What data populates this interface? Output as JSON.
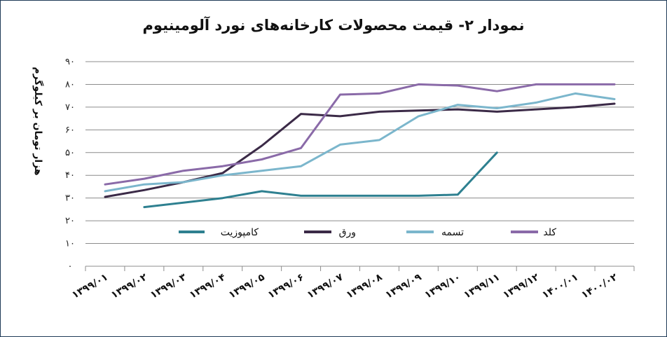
{
  "chart_data": {
    "type": "line",
    "title": "نمودار ۲- قیمت محصولات کارخانه‌های نورد آلومینیوم",
    "xlabel": "",
    "ylabel": "هزار تومان بر کیلوگرم",
    "categories": [
      "۱۳۹۹/۰۱",
      "۱۳۹۹/۰۲",
      "۱۳۹۹/۰۳",
      "۱۳۹۹/۰۴",
      "۱۳۹۹/۰۵",
      "۱۳۹۹/۰۶",
      "۱۳۹۹/۰۷",
      "۱۳۹۹/۰۸",
      "۱۳۹۹/۰۹",
      "۱۳۹۹/۱۰",
      "۱۳۹۹/۱۱",
      "۱۳۹۹/۱۲",
      "۱۴۰۰/۰۱",
      "۱۴۰۰/۰۲"
    ],
    "ylim": [
      0,
      90
    ],
    "yticks": [
      0,
      10,
      20,
      30,
      40,
      50,
      60,
      70,
      80,
      90
    ],
    "ytick_labels": [
      "۰",
      "۱۰",
      "۲۰",
      "۳۰",
      "۴۰",
      "۵۰",
      "۶۰",
      "۷۰",
      "۸۰",
      "۹۰"
    ],
    "grid": true,
    "legend_position": "inside-bottom",
    "series": [
      {
        "name": "کامپوزیت",
        "color": "#2e8090",
        "values": [
          null,
          26,
          28,
          30,
          33,
          31,
          31,
          31,
          31,
          31.5,
          50,
          null,
          null,
          null
        ]
      },
      {
        "name": "ورق",
        "color": "#3b2a47",
        "values": [
          30.5,
          33.5,
          37,
          41,
          53,
          67,
          66,
          68,
          68.5,
          69,
          68,
          69,
          70,
          71.5
        ]
      },
      {
        "name": "تسمه",
        "color": "#7bb6cc",
        "values": [
          33,
          36,
          37,
          40,
          42,
          44,
          53.5,
          55.5,
          66,
          71,
          69.5,
          72,
          76,
          73.5
        ]
      },
      {
        "name": "کلد",
        "color": "#8a6aa8",
        "values": [
          36,
          38.5,
          42,
          44,
          47,
          52,
          75.5,
          76,
          80,
          79.5,
          77,
          80,
          80,
          80
        ]
      }
    ]
  }
}
